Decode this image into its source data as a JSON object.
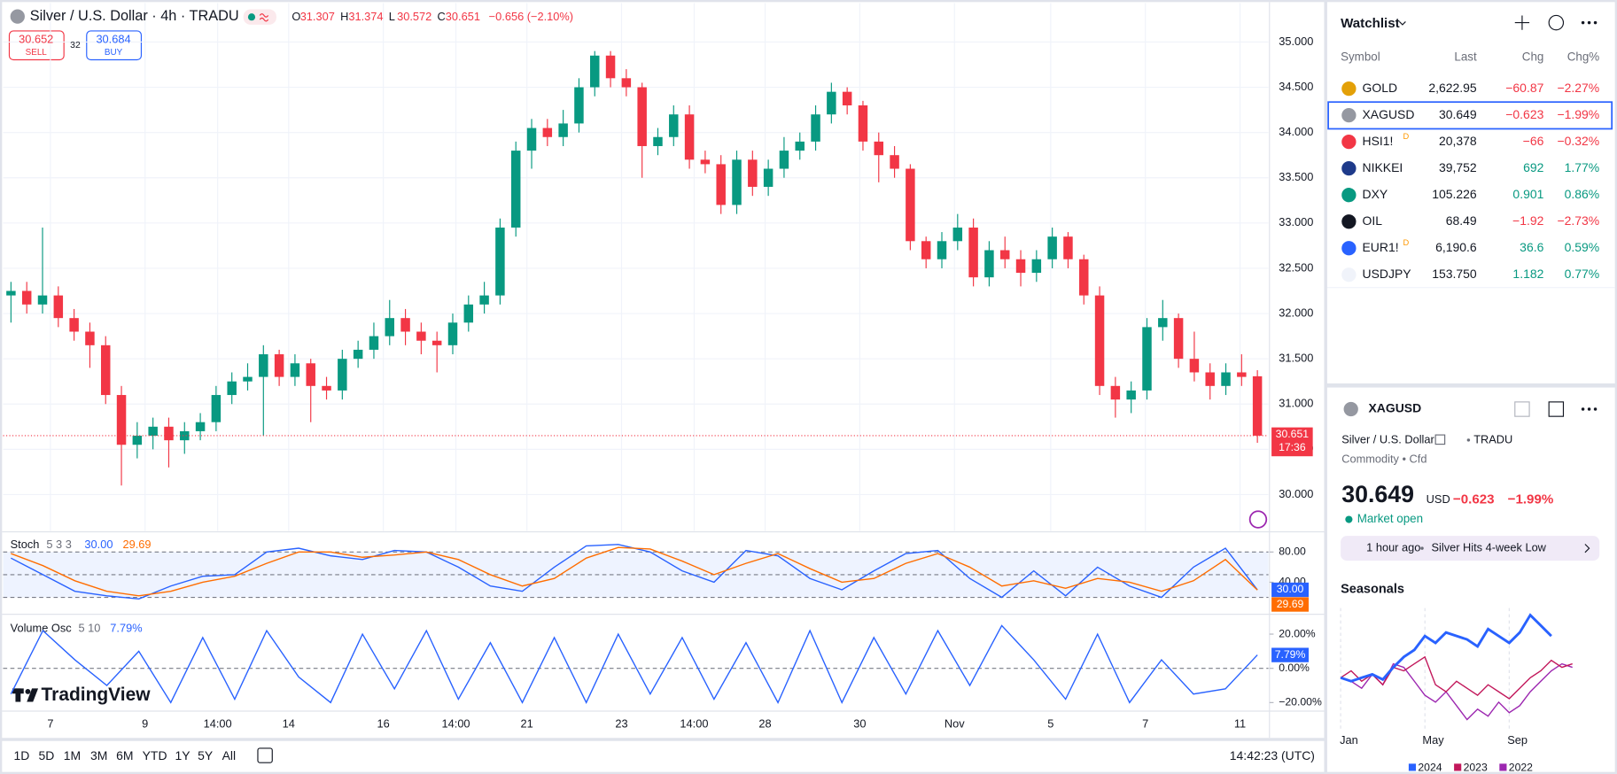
{
  "chart_data": [
    {
      "type": "candlestick",
      "title": "Silver / U.S. Dollar · 4h · TRADU",
      "ohlc_prefixes": [
        "O",
        "H",
        "L",
        "C"
      ],
      "change_label": "−0.656 (−2.10%)",
      "sell": {
        "price": "30.652",
        "label": "SELL"
      },
      "spread": "32",
      "buy": {
        "price": "30.684",
        "label": "BUY"
      },
      "countdown": "17:36",
      "up_color": "#089981",
      "down_color": "#f23645",
      "open": [
        32.2,
        32.25,
        32.1,
        32.2,
        31.95,
        31.8,
        31.65,
        31.1,
        30.55,
        30.65,
        30.75,
        30.6,
        30.7,
        30.8,
        31.1,
        31.25,
        31.3,
        31.55,
        31.3,
        31.45,
        31.2,
        31.15,
        31.5,
        31.6,
        31.75,
        31.95,
        31.8,
        31.7,
        31.65,
        31.9,
        32.1,
        32.2,
        32.95,
        33.8,
        34.05,
        33.95,
        34.1,
        34.5,
        34.85,
        34.6,
        34.5,
        33.85,
        33.95,
        34.2,
        33.7,
        33.65,
        33.2,
        33.7,
        33.4,
        33.6,
        33.8,
        33.9,
        34.2,
        34.45,
        34.3,
        33.9,
        33.75,
        33.6,
        32.8,
        32.6,
        32.8,
        32.95,
        32.4,
        32.7,
        32.6,
        32.45,
        32.6,
        32.85,
        32.6,
        32.2,
        31.2,
        31.05,
        31.15,
        31.85,
        31.95,
        31.5,
        31.35,
        31.2,
        31.35,
        31.307
      ],
      "high": [
        32.35,
        32.35,
        32.95,
        32.3,
        32.05,
        31.9,
        31.75,
        31.2,
        30.8,
        30.85,
        30.85,
        30.8,
        30.9,
        31.2,
        31.35,
        31.45,
        31.65,
        31.6,
        31.55,
        31.5,
        31.3,
        31.6,
        31.7,
        31.9,
        32.15,
        32.05,
        31.9,
        31.8,
        32.0,
        32.2,
        32.35,
        33.05,
        33.9,
        34.15,
        34.15,
        34.25,
        34.6,
        34.9,
        34.9,
        34.7,
        34.55,
        34.05,
        34.3,
        34.3,
        33.8,
        33.75,
        33.8,
        33.8,
        33.7,
        33.95,
        34.0,
        34.3,
        34.55,
        34.5,
        34.35,
        34.0,
        33.85,
        33.65,
        32.85,
        32.9,
        33.1,
        33.05,
        32.8,
        32.85,
        32.7,
        32.7,
        32.95,
        32.9,
        32.65,
        32.3,
        31.3,
        31.25,
        31.95,
        32.15,
        32.0,
        31.8,
        31.45,
        31.45,
        31.55,
        31.374
      ],
      "low": [
        31.9,
        32.0,
        32.0,
        31.85,
        31.7,
        31.4,
        31.0,
        30.1,
        30.4,
        30.5,
        30.3,
        30.45,
        30.6,
        30.7,
        31.0,
        31.15,
        30.65,
        31.2,
        31.2,
        30.8,
        31.05,
        31.05,
        31.4,
        31.5,
        31.65,
        31.65,
        31.55,
        31.35,
        31.55,
        31.8,
        32.0,
        32.1,
        32.85,
        33.6,
        33.85,
        33.85,
        34.0,
        34.4,
        34.5,
        34.4,
        33.5,
        33.75,
        33.85,
        33.6,
        33.55,
        33.1,
        33.1,
        33.3,
        33.3,
        33.5,
        33.7,
        33.8,
        34.1,
        34.2,
        33.8,
        33.45,
        33.5,
        32.7,
        32.5,
        32.5,
        32.7,
        32.3,
        32.3,
        32.5,
        32.3,
        32.35,
        32.5,
        32.5,
        32.1,
        31.1,
        30.85,
        30.9,
        31.05,
        31.7,
        31.4,
        31.25,
        31.05,
        31.1,
        31.2,
        30.572
      ],
      "close": [
        32.25,
        32.1,
        32.2,
        31.95,
        31.8,
        31.65,
        31.1,
        30.55,
        30.65,
        30.75,
        30.6,
        30.7,
        30.8,
        31.1,
        31.25,
        31.3,
        31.55,
        31.3,
        31.45,
        31.2,
        31.15,
        31.5,
        31.6,
        31.75,
        31.95,
        31.8,
        31.7,
        31.65,
        31.9,
        32.1,
        32.2,
        32.95,
        33.8,
        34.05,
        33.95,
        34.1,
        34.5,
        34.85,
        34.6,
        34.5,
        33.85,
        33.95,
        34.2,
        33.7,
        33.65,
        33.2,
        33.7,
        33.4,
        33.6,
        33.8,
        33.9,
        34.2,
        34.45,
        34.3,
        33.9,
        33.75,
        33.6,
        32.8,
        32.6,
        32.8,
        32.95,
        32.4,
        32.7,
        32.6,
        32.45,
        32.6,
        32.85,
        32.6,
        32.2,
        31.2,
        31.05,
        31.15,
        31.85,
        31.95,
        31.5,
        31.35,
        31.2,
        31.35,
        31.3,
        30.651
      ],
      "xlim": [
        -0.5,
        79.7
      ],
      "xticks": [
        {
          "value": 2.5,
          "label": "7"
        },
        {
          "value": 8.5,
          "label": "9"
        },
        {
          "value": 13.1,
          "label": "14:00"
        },
        {
          "value": 17.6,
          "label": "14"
        },
        {
          "value": 23.6,
          "label": "16"
        },
        {
          "value": 28.2,
          "label": "14:00"
        },
        {
          "value": 32.7,
          "label": "21"
        },
        {
          "value": 38.7,
          "label": "23"
        },
        {
          "value": 43.3,
          "label": "14:00"
        },
        {
          "value": 47.8,
          "label": "28"
        },
        {
          "value": 53.8,
          "label": "30"
        },
        {
          "value": 59.8,
          "label": "Nov"
        },
        {
          "value": 65.9,
          "label": "5"
        },
        {
          "value": 71.9,
          "label": "7"
        },
        {
          "value": 77.9,
          "label": "11"
        }
      ],
      "ylim": [
        29.6,
        35.43
      ],
      "yticks": [
        {
          "value": 30,
          "label": "30.000"
        },
        {
          "value": 30.5,
          "label": "30.500"
        },
        {
          "value": 31,
          "label": "31.000"
        },
        {
          "value": 31.5,
          "label": "31.500"
        },
        {
          "value": 32,
          "label": "32.000"
        },
        {
          "value": 32.5,
          "label": "32.500"
        },
        {
          "value": 33,
          "label": "33.000"
        },
        {
          "value": 33.5,
          "label": "33.500"
        },
        {
          "value": 34,
          "label": "34.000"
        },
        {
          "value": 34.5,
          "label": "34.500"
        },
        {
          "value": 35,
          "label": "35.000"
        }
      ],
      "grid": true
    },
    {
      "type": "line",
      "title": "Stoch",
      "params": "5 3 3",
      "ylim": [
        -1,
        104
      ],
      "yticks": [
        {
          "value": 80,
          "label": "80.00"
        },
        {
          "value": 40,
          "label": "40.00"
        }
      ],
      "bands": [
        80,
        50,
        20
      ],
      "band_color": "#2962ff",
      "series": [
        {
          "color": "#2962ff",
          "last_label": "30.00",
          "values": [
            72,
            50,
            28,
            22,
            18,
            35,
            48,
            50,
            80,
            85,
            75,
            70,
            82,
            80,
            60,
            35,
            28,
            60,
            88,
            90,
            80,
            55,
            40,
            82,
            75,
            45,
            30,
            55,
            78,
            82,
            45,
            20,
            55,
            22,
            60,
            35,
            20,
            60,
            85,
            30
          ]
        },
        {
          "color": "#ff6d00",
          "last_label": "29.69",
          "values": [
            78,
            62,
            42,
            28,
            22,
            28,
            40,
            48,
            65,
            80,
            80,
            73,
            76,
            80,
            70,
            50,
            35,
            45,
            72,
            86,
            84,
            68,
            50,
            65,
            78,
            58,
            40,
            45,
            65,
            78,
            60,
            35,
            42,
            32,
            45,
            40,
            28,
            42,
            70,
            29.69
          ]
        }
      ]
    },
    {
      "type": "line",
      "title": "Volume Osc",
      "params": "5 10",
      "ylim": [
        -25,
        31
      ],
      "yticks": [
        {
          "value": 20,
          "label": "20.00%"
        },
        {
          "value": 0,
          "label": "0.00%"
        },
        {
          "value": -20,
          "label": "−20.00%"
        }
      ],
      "bands": [
        0
      ],
      "series": [
        {
          "color": "#2962ff",
          "last_label": "7.79%",
          "values": [
            -15,
            22,
            5,
            -10,
            10,
            -20,
            18,
            -18,
            22,
            -5,
            -20,
            20,
            -12,
            22,
            -18,
            15,
            -20,
            18,
            -20,
            20,
            -15,
            18,
            -18,
            15,
            -20,
            22,
            -20,
            18,
            -15,
            22,
            -10,
            25,
            5,
            -18,
            20,
            -20,
            5,
            -15,
            -12,
            7.79
          ]
        }
      ]
    },
    {
      "type": "line",
      "title": "Seasonals",
      "x": [
        0,
        0.5,
        1,
        1.5,
        2,
        2.5,
        3,
        3.5,
        4,
        4.5,
        5,
        5.5,
        6,
        6.5,
        7,
        7.5,
        8,
        8.5,
        9,
        9.5,
        10,
        10.5,
        11
      ],
      "xlim": [
        0,
        11.5
      ],
      "xticks": [
        {
          "value": 0,
          "label": "Jan"
        },
        {
          "value": 4,
          "label": "May"
        },
        {
          "value": 8,
          "label": "Sep"
        }
      ],
      "ylim": [
        -14,
        20
      ],
      "series": [
        {
          "name": "2024",
          "color": "#2962ff",
          "values": [
            0,
            -1,
            0,
            1,
            -0.5,
            3,
            6,
            8,
            12,
            10,
            13,
            12,
            11,
            9,
            14,
            12,
            10,
            13,
            18,
            15,
            12,
            null,
            null
          ]
        },
        {
          "name": "2023",
          "color": "#c2185b",
          "values": [
            0,
            2,
            -1,
            1,
            -2,
            3,
            2,
            4,
            6,
            -2,
            -4,
            -1,
            -3,
            -5,
            -2,
            -4,
            -6,
            -3,
            0,
            2,
            5,
            3,
            4
          ]
        },
        {
          "name": "2022",
          "color": "#9c27b0",
          "values": [
            0,
            -1,
            -3,
            1,
            -2,
            4,
            3,
            -1,
            -5,
            -7,
            -4,
            -8,
            -12,
            -9,
            -11,
            -7,
            -10,
            -8,
            -4,
            -1,
            2,
            4,
            3
          ]
        }
      ]
    }
  ],
  "logo": "TradingView",
  "toolbar": {
    "ranges": [
      "1D",
      "5D",
      "1M",
      "3M",
      "6M",
      "YTD",
      "1Y",
      "5Y",
      "All"
    ],
    "clock": "14:42:23 (UTC)"
  },
  "watchlist": {
    "title": "Watchlist",
    "columns": [
      "Symbol",
      "Last",
      "Chg",
      "Chg%"
    ],
    "rows": [
      {
        "symbol": "GOLD",
        "last": "2,622.95",
        "chg": "−60.87",
        "chg_pct": "−2.27%"
      },
      {
        "symbol": "XAGUSD",
        "last": "30.649",
        "chg": "−0.623",
        "chg_pct": "−1.99%"
      },
      {
        "symbol": "HSI1!",
        "badge": "D",
        "last": "20,378",
        "chg": "−66",
        "chg_pct": "−0.32%"
      },
      {
        "symbol": "NIKKEI",
        "last": "39,752",
        "chg": "692",
        "chg_pct": "1.77%"
      },
      {
        "symbol": "DXY",
        "last": "105.226",
        "chg": "0.901",
        "chg_pct": "0.86%"
      },
      {
        "symbol": "OIL",
        "last": "68.49",
        "chg": "−1.92",
        "chg_pct": "−2.73%"
      },
      {
        "symbol": "EUR1!",
        "badge": "D",
        "last": "6,190.6",
        "chg": "36.6",
        "chg_pct": "0.59%"
      },
      {
        "symbol": "USDJPY",
        "last": "153.750",
        "chg": "1.182",
        "chg_pct": "0.77%"
      }
    ]
  },
  "details": {
    "symbol": "XAGUSD",
    "name": "Silver / U.S. Dollar",
    "exchange": "TRADU",
    "category": "Commodity • Cfd",
    "price": "30.649",
    "currency": "USD",
    "change": "−0.623",
    "change_pct": "−1.99%",
    "status": "Market open",
    "news": {
      "time": "1 hour ago",
      "headline": "Silver Hits 4-week Low"
    }
  }
}
